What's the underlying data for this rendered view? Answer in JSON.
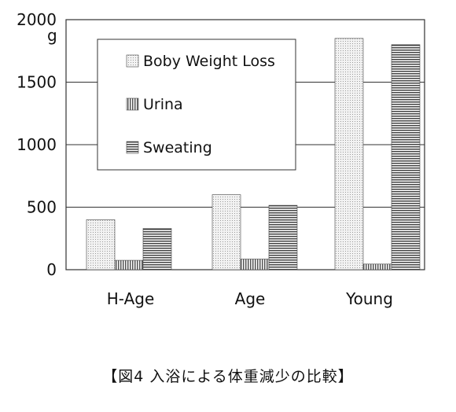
{
  "chart_data": {
    "type": "bar",
    "categories": [
      "H-Age",
      "Age",
      "Young"
    ],
    "series": [
      {
        "name": "Boby Weight Loss",
        "values": [
          400,
          600,
          1850
        ],
        "color": "#d8d8d8",
        "pattern": "dots"
      },
      {
        "name": "Urina",
        "values": [
          75,
          85,
          45
        ],
        "color": "#777777",
        "pattern": "vertical"
      },
      {
        "name": "Sweating",
        "values": [
          330,
          515,
          1800
        ],
        "color": "#555555",
        "pattern": "horizontal"
      }
    ],
    "y_ticks": [
      "0",
      "500",
      "1000",
      "1500",
      "2000"
    ],
    "y_unit": "g",
    "ylim": [
      0,
      2000
    ],
    "grid": true,
    "legend_position": "top-center",
    "caption": "【図4  入浴による体重減少の比較】"
  }
}
